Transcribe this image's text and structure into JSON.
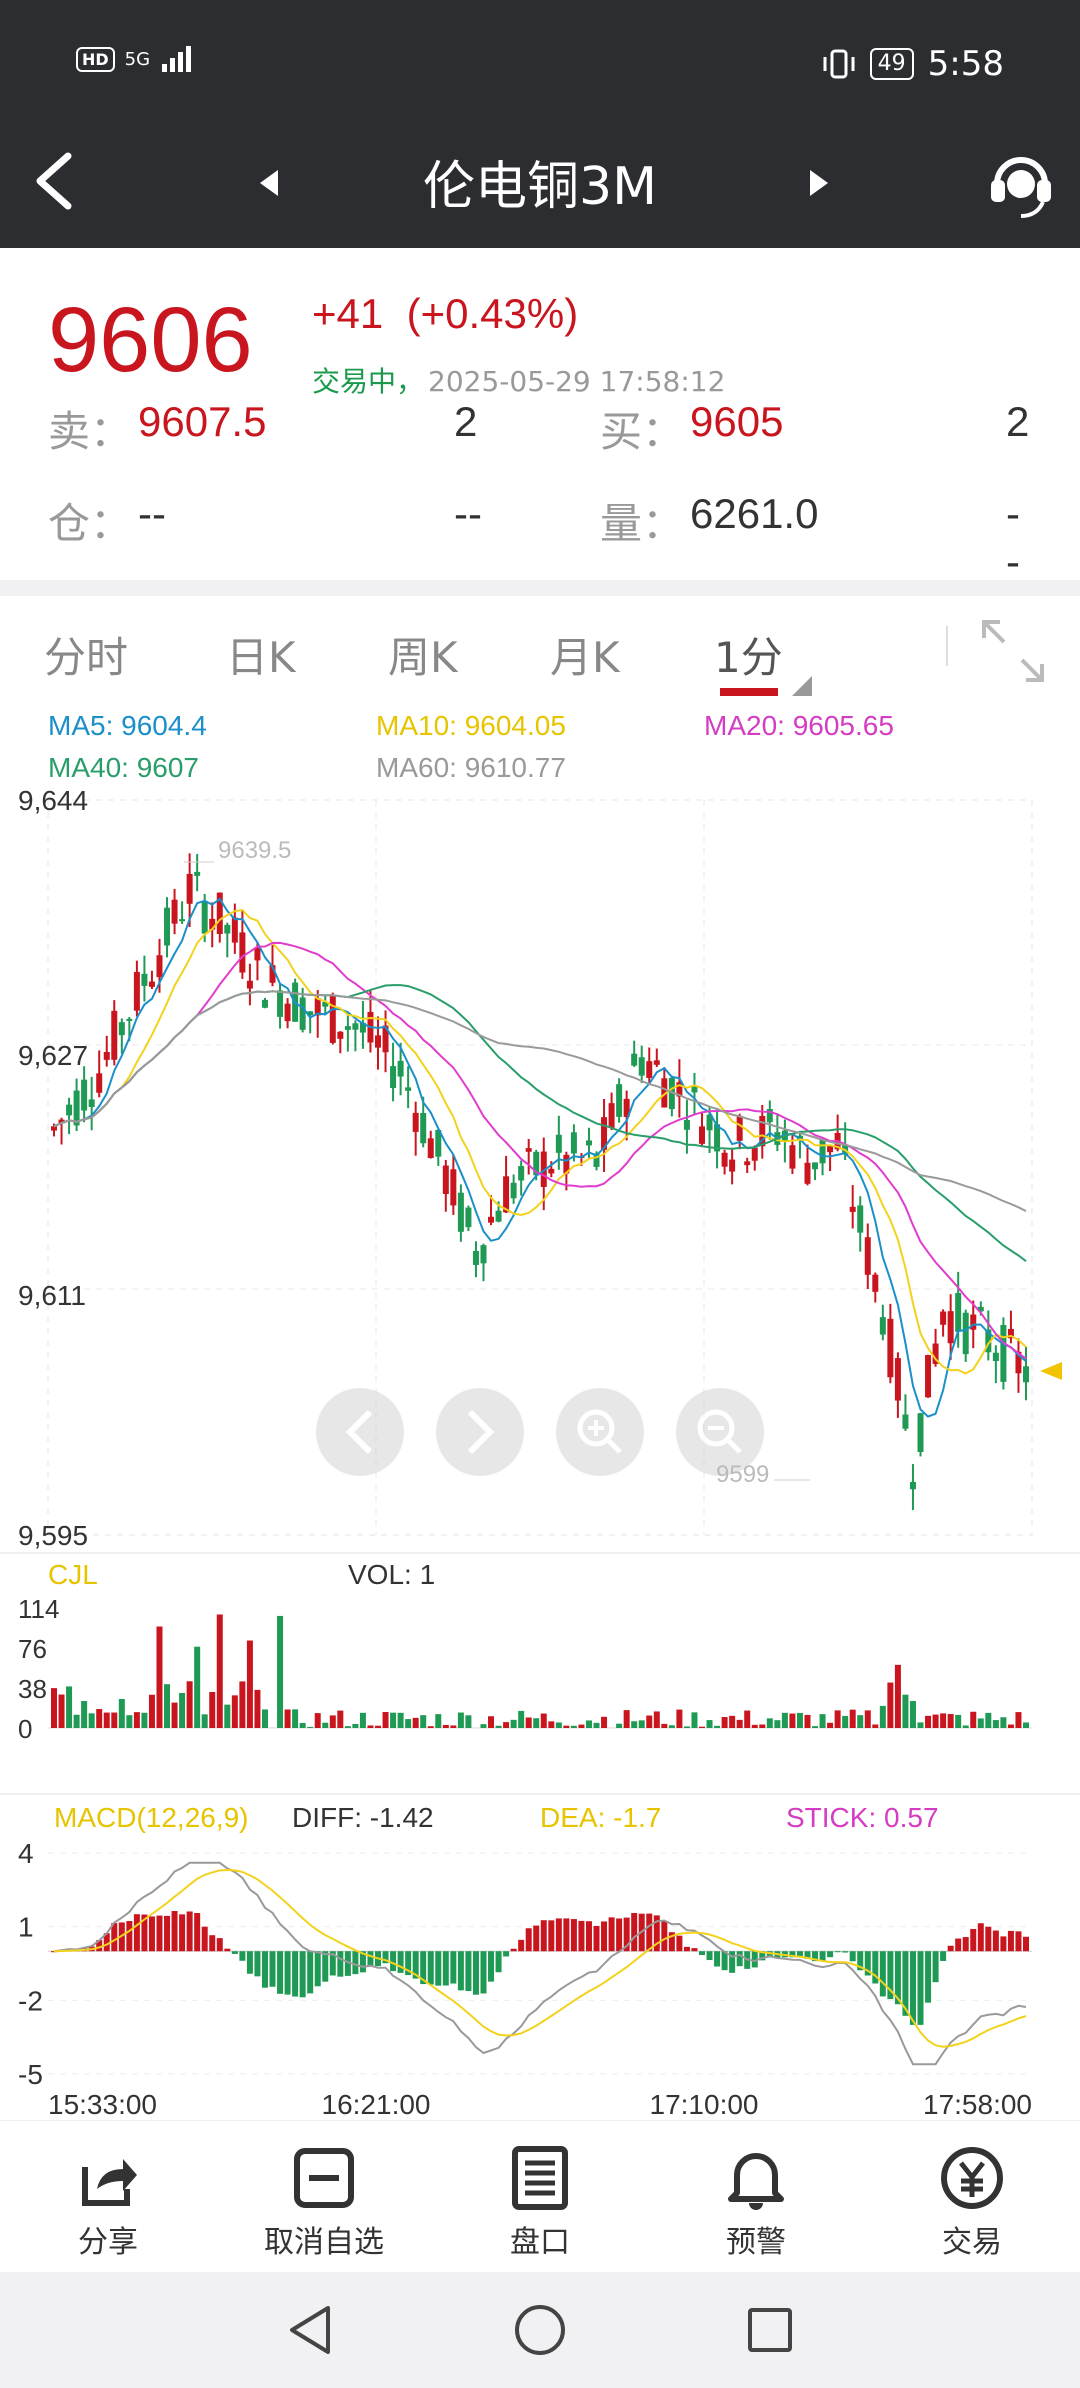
{
  "status_bar": {
    "hd": "HD",
    "network": "5G",
    "battery": "49",
    "time": "5:58"
  },
  "header": {
    "title": "伦电铜3M"
  },
  "quote": {
    "price": "9606",
    "change": "+41",
    "change_pct": "(+0.43%)",
    "status": "交易中，",
    "timestamp": "2025-05-29 17:58:12",
    "sell_label": "卖：",
    "sell_price": "9607.5",
    "sell_qty": "2",
    "buy_label": "买：",
    "buy_price": "9605",
    "buy_qty": "2",
    "pos_label": "仓：",
    "pos_value": "--",
    "pos_change": "--",
    "vol_label": "量：",
    "vol_value": "6261.0",
    "vol_change": "--"
  },
  "tabs": [
    "分时",
    "日K",
    "周K",
    "月K",
    "1分"
  ],
  "active_tab": "1分",
  "ma_legend": {
    "ma5": "MA5: 9604.4",
    "ma10": "MA10: 9604.05",
    "ma20": "MA20: 9605.65",
    "ma40": "MA40: 9607",
    "ma60": "MA60: 9610.77"
  },
  "colors": {
    "up": "#c9151e",
    "down": "#1f9a55",
    "ma5": "#1a8fc9",
    "ma10": "#f2d21c",
    "ma20": "#e23ccf",
    "ma40": "#2a9e6a",
    "ma60": "#9a9a9a"
  },
  "chart_data": [
    {
      "type": "candlestick",
      "y_ticks": [
        "9,644",
        "9,627",
        "9,611",
        "9,595"
      ],
      "ylim": [
        9595,
        9644
      ],
      "annotations": {
        "max": "9639.5",
        "min": "9599"
      },
      "current_price": 9606
    },
    {
      "type": "bar",
      "label": "CJL",
      "vol_text": "VOL: 1",
      "y_ticks": [
        "114",
        "76",
        "38",
        "0"
      ],
      "ylim": [
        0,
        114
      ]
    },
    {
      "type": "line",
      "label": "MACD(12,26,9)",
      "diff": "DIFF: -1.42",
      "dea": "DEA: -1.7",
      "stick": "STICK: 0.57",
      "y_ticks": [
        "4",
        "1",
        "-2",
        "-5"
      ],
      "ylim": [
        -5,
        4
      ],
      "x_ticks": [
        "15:33:00",
        "16:21:00",
        "17:10:00",
        "17:58:00"
      ]
    }
  ],
  "controls": {
    "prev": "prev",
    "next": "next",
    "zoom_in": "zoom-in",
    "zoom_out": "zoom-out"
  },
  "toolbar": [
    {
      "label": "分享",
      "icon": "share-icon"
    },
    {
      "label": "取消自选",
      "icon": "remove-watchlist-icon"
    },
    {
      "label": "盘口",
      "icon": "orderbook-icon"
    },
    {
      "label": "预警",
      "icon": "bell-icon"
    },
    {
      "label": "交易",
      "icon": "yen-icon"
    }
  ]
}
